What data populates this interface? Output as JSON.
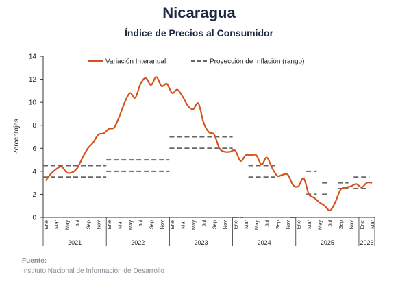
{
  "header": {
    "title": "Nicaragua",
    "subtitle": "Índice de Precios al Consumidor"
  },
  "source": {
    "label": "Fuente:",
    "text": "Instituto Nacional de Información de Desarrollo"
  },
  "colors": {
    "line": "#d4531c",
    "projection": "#666666",
    "axis": "#333333"
  },
  "chart_data": {
    "type": "line",
    "ylabel": "Porcentajes",
    "xlabel": "",
    "ylim": [
      0,
      14
    ],
    "yticks": [
      0,
      2,
      4,
      6,
      8,
      10,
      12,
      14
    ],
    "grid": false,
    "legend_position": "top",
    "x_months": [
      "Ene",
      "Mar",
      "May",
      "Jul",
      "Sep",
      "Nov"
    ],
    "x_months_2026": [
      "Ene",
      "Mar"
    ],
    "years": [
      "2021",
      "2022",
      "2023",
      "2024",
      "2025",
      "2026"
    ],
    "series": [
      {
        "name": "Variación Interanual",
        "style": "solid",
        "x": [
          "2021-01",
          "2021-02",
          "2021-03",
          "2021-04",
          "2021-05",
          "2021-06",
          "2021-07",
          "2021-08",
          "2021-09",
          "2021-10",
          "2021-11",
          "2021-12",
          "2022-01",
          "2022-02",
          "2022-03",
          "2022-04",
          "2022-05",
          "2022-06",
          "2022-07",
          "2022-08",
          "2022-09",
          "2022-10",
          "2022-11",
          "2022-12",
          "2023-01",
          "2023-02",
          "2023-03",
          "2023-04",
          "2023-05",
          "2023-06",
          "2023-07",
          "2023-08",
          "2023-09",
          "2023-10",
          "2023-11",
          "2023-12",
          "2024-01",
          "2024-02",
          "2024-03",
          "2024-04",
          "2024-05",
          "2024-06",
          "2024-07",
          "2024-08",
          "2024-09",
          "2024-10",
          "2024-11",
          "2024-12",
          "2025-01",
          "2025-02",
          "2025-03",
          "2025-04",
          "2025-05",
          "2025-06",
          "2025-07",
          "2025-08",
          "2025-09",
          "2025-10",
          "2025-11",
          "2025-12",
          "2026-01",
          "2026-02",
          "2026-03"
        ],
        "values": [
          3.2,
          3.8,
          4.2,
          4.4,
          3.9,
          3.9,
          4.3,
          5.2,
          6.0,
          6.5,
          7.2,
          7.3,
          7.7,
          7.8,
          8.8,
          10.0,
          10.8,
          10.4,
          11.6,
          12.1,
          11.5,
          12.2,
          11.4,
          11.6,
          10.8,
          11.1,
          10.5,
          9.7,
          9.4,
          9.9,
          8.2,
          7.4,
          7.2,
          6.0,
          5.7,
          5.7,
          5.8,
          4.9,
          5.4,
          5.4,
          5.4,
          4.6,
          5.2,
          4.3,
          3.6,
          3.7,
          3.7,
          2.8,
          2.7,
          3.4,
          2.0,
          1.7,
          1.3,
          1.0,
          0.6,
          1.3,
          2.4,
          2.6,
          2.7,
          2.9,
          2.6,
          3.0,
          3.0
        ]
      }
    ],
    "projections": {
      "name": "Proyección de Inflación (rango)",
      "style": "dashed",
      "ranges": [
        {
          "start": "2021-01",
          "end": "2021-12",
          "low": 3.5,
          "high": 4.5
        },
        {
          "start": "2022-01",
          "end": "2022-12",
          "low": 4.0,
          "high": 5.0
        },
        {
          "start": "2023-01",
          "end": "2023-12",
          "low": 6.0,
          "high": 7.0
        },
        {
          "start": "2024-01",
          "end": "2024-02",
          "low": 0.0,
          "high": 0.0
        },
        {
          "start": "2024-04",
          "end": "2024-08",
          "low": 3.5,
          "high": 4.5
        },
        {
          "start": "2024-12",
          "end": "2024-12",
          "low": 0.0,
          "high": 0.0
        },
        {
          "start": "2025-03",
          "end": "2025-04",
          "low": 2.0,
          "high": 4.0
        },
        {
          "start": "2025-06",
          "end": "2025-06",
          "low": 2.0,
          "high": 3.0
        },
        {
          "start": "2025-09",
          "end": "2025-10",
          "low": 2.5,
          "high": 3.0
        },
        {
          "start": "2025-12",
          "end": "2026-02",
          "low": 2.5,
          "high": 3.5
        }
      ]
    }
  }
}
